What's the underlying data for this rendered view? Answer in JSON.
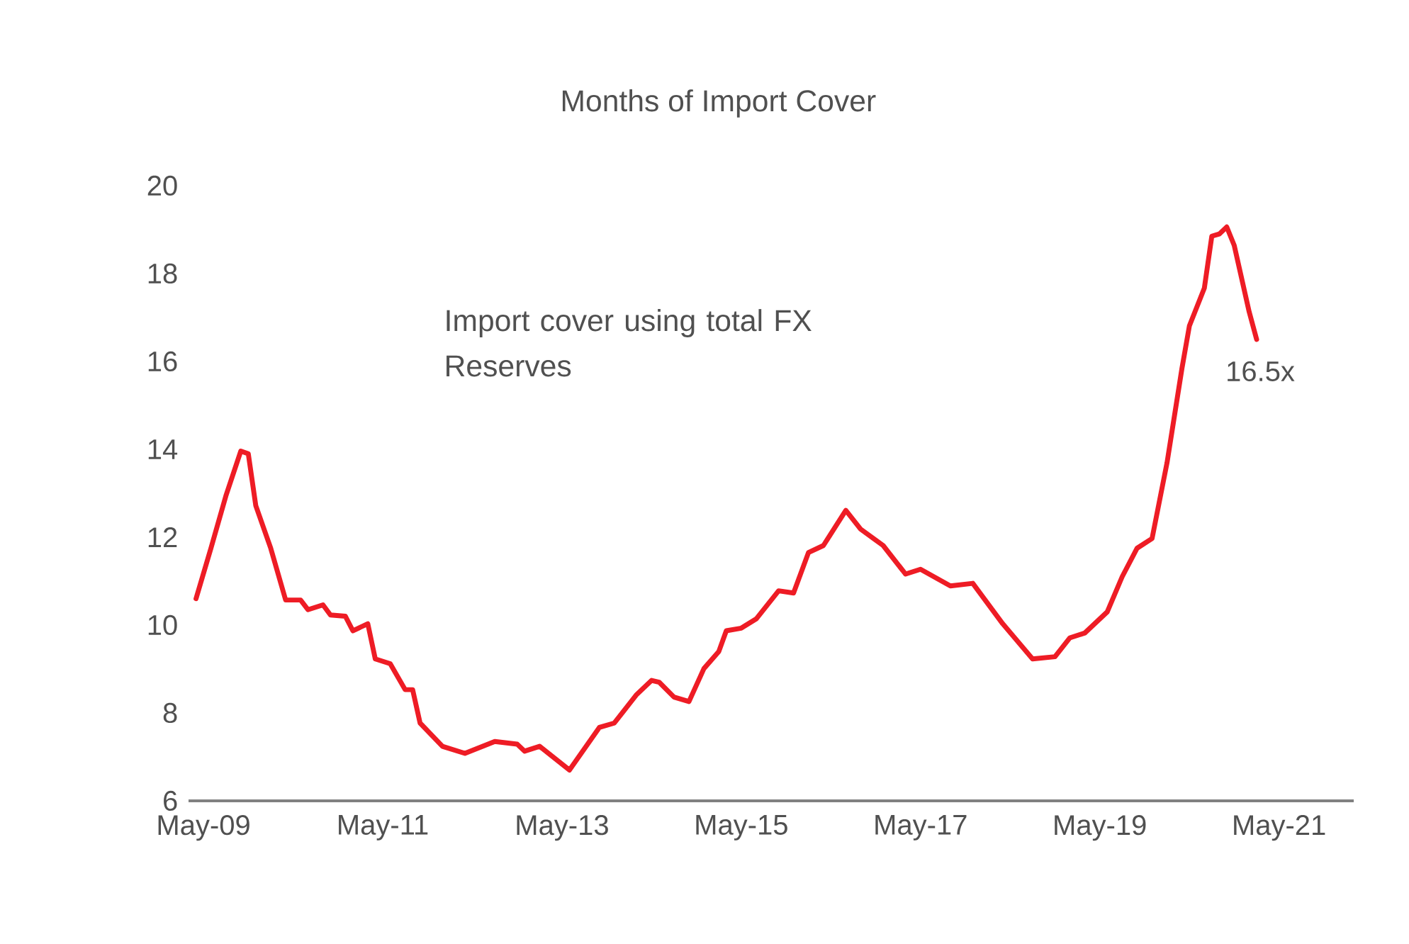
{
  "chart_data": {
    "type": "line",
    "title": "Months of Import Cover",
    "x": [
      "2009-04",
      "2009-06",
      "2009-08",
      "2009-10",
      "2009-11",
      "2009-12",
      "2010-02",
      "2010-04",
      "2010-06",
      "2010-07",
      "2010-09",
      "2010-10",
      "2010-12",
      "2011-01",
      "2011-03",
      "2011-04",
      "2011-06",
      "2011-08",
      "2011-09",
      "2011-10",
      "2012-01",
      "2012-04",
      "2012-08",
      "2012-11",
      "2012-12",
      "2013-02",
      "2013-06",
      "2013-10",
      "2013-12",
      "2014-03",
      "2014-05",
      "2014-06",
      "2014-08",
      "2014-10",
      "2014-12",
      "2015-02",
      "2015-03",
      "2015-05",
      "2015-07",
      "2015-10",
      "2015-12",
      "2016-02",
      "2016-04",
      "2016-07",
      "2016-09",
      "2016-12",
      "2017-03",
      "2017-05",
      "2017-09",
      "2017-12",
      "2018-04",
      "2018-08",
      "2018-11",
      "2019-01",
      "2019-03",
      "2019-06",
      "2019-08",
      "2019-10",
      "2019-12",
      "2020-02",
      "2020-04",
      "2020-05",
      "2020-07",
      "2020-08",
      "2020-09",
      "2020-10",
      "2020-11",
      "2021-01",
      "2021-02"
    ],
    "series": [
      {
        "color": "#ee1c25",
        "values": [
          10.6,
          11.75,
          12.94,
          13.96,
          13.9,
          12.72,
          11.75,
          10.57,
          10.57,
          10.35,
          10.46,
          10.23,
          10.2,
          9.87,
          10.03,
          9.23,
          9.12,
          8.53,
          8.53,
          7.77,
          7.24,
          7.08,
          7.35,
          7.29,
          7.13,
          7.24,
          6.7,
          7.67,
          7.77,
          8.42,
          8.74,
          8.7,
          8.36,
          8.26,
          9.01,
          9.4,
          9.87,
          9.93,
          10.14,
          10.78,
          10.73,
          11.65,
          11.81,
          12.61,
          12.18,
          11.81,
          11.16,
          11.27,
          10.89,
          10.95,
          10.03,
          9.23,
          9.28,
          9.71,
          9.82,
          10.3,
          11.1,
          11.75,
          11.97,
          13.69,
          15.84,
          16.81,
          17.67,
          18.85,
          18.9,
          19.06,
          18.64,
          17.13,
          16.5
        ]
      }
    ],
    "xlim": [
      "2009-03",
      "2022-03"
    ],
    "xticks": [
      {
        "value": "2009-05",
        "label": "May-09"
      },
      {
        "value": "2011-05",
        "label": "May-11"
      },
      {
        "value": "2013-05",
        "label": "May-13"
      },
      {
        "value": "2015-05",
        "label": "May-15"
      },
      {
        "value": "2017-05",
        "label": "May-17"
      },
      {
        "value": "2019-05",
        "label": "May-19"
      },
      {
        "value": "2021-05",
        "label": "May-21"
      }
    ],
    "ylim": [
      6,
      20
    ],
    "yticks": [
      6,
      8,
      10,
      12,
      14,
      16,
      18,
      20
    ],
    "grid": false,
    "marker": "none",
    "line_style": "solid",
    "annotations": [
      "Import cover using total FX Reserves",
      {
        "text": "16.5x",
        "x": "2021-02",
        "y": 16.5
      }
    ]
  }
}
